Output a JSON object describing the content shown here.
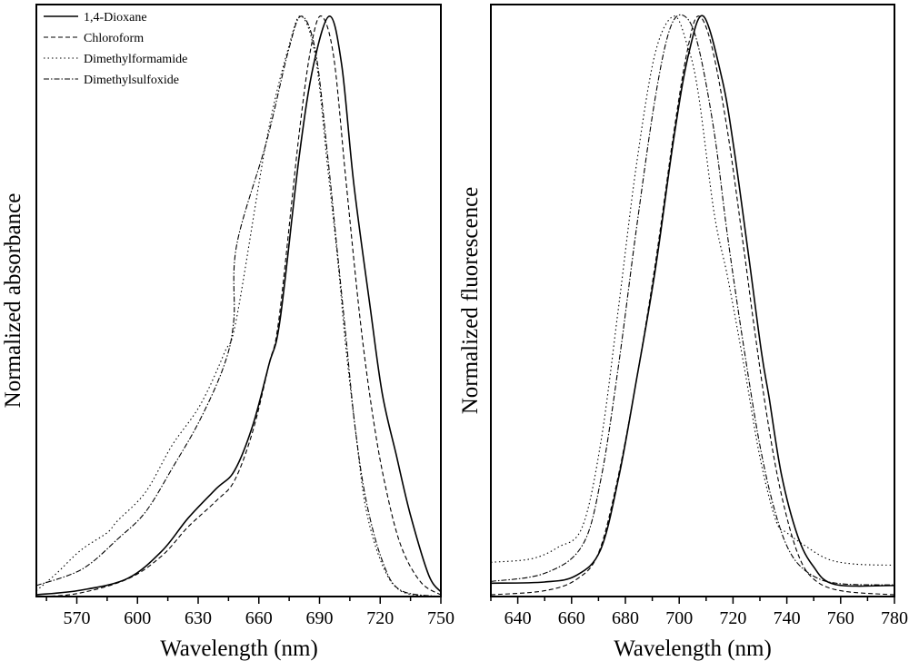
{
  "chart_data": [
    {
      "type": "line",
      "title": "",
      "xlabel": "Wavelength (nm)",
      "ylabel": "Normalized absorbance",
      "xlim": [
        550,
        750
      ],
      "ylim": [
        0,
        1.02
      ],
      "xticks": [
        570,
        600,
        630,
        660,
        690,
        720,
        750
      ],
      "grid": false,
      "legend": {
        "placement": "top-left",
        "entries": [
          "1,4-Dioxane",
          "Chloroform",
          "Dimethylformamide",
          "Dimethylsulfoxide"
        ]
      },
      "series": [
        {
          "name": "1,4-Dioxane",
          "style": "solid",
          "x": [
            550,
            572,
            595,
            612,
            625,
            639,
            648,
            657,
            665,
            670.5,
            680,
            687,
            695,
            701,
            707,
            715,
            721,
            728,
            735,
            744,
            750
          ],
          "y": [
            0.003,
            0.011,
            0.031,
            0.078,
            0.135,
            0.186,
            0.217,
            0.295,
            0.4,
            0.477,
            0.76,
            0.915,
            1.0,
            0.915,
            0.71,
            0.5,
            0.35,
            0.243,
            0.14,
            0.037,
            0.008
          ]
        },
        {
          "name": "Chloroform",
          "style": "dashed",
          "x": [
            550,
            570,
            595,
            612,
            625,
            639,
            648,
            657,
            665,
            670,
            680,
            686,
            691,
            697,
            703,
            710,
            716,
            722,
            730,
            740,
            750
          ],
          "y": [
            0.0,
            0.005,
            0.03,
            0.07,
            0.12,
            0.165,
            0.2,
            0.285,
            0.4,
            0.48,
            0.8,
            0.95,
            1.0,
            0.93,
            0.72,
            0.48,
            0.32,
            0.2,
            0.09,
            0.025,
            0.003
          ]
        },
        {
          "name": "Dimethylformamide",
          "style": "dotted",
          "x": [
            550,
            560,
            572,
            585,
            590,
            604,
            617,
            631,
            643,
            649,
            664,
            675,
            681,
            688,
            694,
            699,
            703,
            708,
            713,
            721,
            730,
            745
          ],
          "y": [
            0.01,
            0.04,
            0.08,
            0.11,
            0.13,
            0.18,
            0.26,
            0.33,
            0.42,
            0.48,
            0.79,
            0.95,
            1.0,
            0.93,
            0.74,
            0.58,
            0.43,
            0.28,
            0.15,
            0.055,
            0.01,
            0.0
          ]
        },
        {
          "name": "Dimethylsulfoxide",
          "style": "dash-dot",
          "x": [
            550,
            572.5,
            590.5,
            604,
            617.5,
            631,
            643,
            647.6,
            649,
            664,
            674.6,
            681,
            688,
            694,
            698.5,
            703,
            707.5,
            713,
            721,
            730,
            750
          ],
          "y": [
            0.019,
            0.047,
            0.1,
            0.146,
            0.223,
            0.305,
            0.4,
            0.476,
            0.605,
            0.786,
            0.94,
            1.0,
            0.94,
            0.76,
            0.605,
            0.45,
            0.295,
            0.166,
            0.062,
            0.011,
            0.0
          ]
        }
      ]
    },
    {
      "type": "line",
      "title": "",
      "xlabel": "Wavelength (nm)",
      "ylabel": "Normalized fluorescence",
      "xlim": [
        630,
        780
      ],
      "ylim": [
        0,
        1.02
      ],
      "xticks": [
        640,
        660,
        680,
        700,
        720,
        740,
        760,
        780
      ],
      "grid": false,
      "series": [
        {
          "name": "1,4-Dioxane",
          "style": "solid",
          "x": [
            630,
            650,
            661.6,
            670.7,
            677.5,
            684,
            691,
            698,
            703.5,
            709,
            716,
            720.4,
            726,
            730.6,
            733.4,
            738,
            744,
            749.7,
            757.8,
            780
          ],
          "y": [
            0.023,
            0.025,
            0.036,
            0.08,
            0.205,
            0.37,
            0.56,
            0.79,
            0.935,
            1.0,
            0.89,
            0.77,
            0.58,
            0.42,
            0.343,
            0.21,
            0.105,
            0.053,
            0.021,
            0.019
          ]
        },
        {
          "name": "Chloroform",
          "style": "dashed",
          "x": [
            630,
            650,
            662,
            670,
            677,
            684,
            691,
            698,
            703,
            707,
            712,
            718,
            724,
            728,
            733,
            738,
            744,
            750,
            760,
            780
          ],
          "y": [
            0.003,
            0.01,
            0.03,
            0.075,
            0.2,
            0.37,
            0.57,
            0.8,
            0.94,
            1.0,
            0.95,
            0.8,
            0.6,
            0.46,
            0.3,
            0.175,
            0.075,
            0.03,
            0.01,
            0.003
          ]
        },
        {
          "name": "Dimethylformamide",
          "style": "dotted",
          "x": [
            630,
            645,
            655,
            664,
            671,
            677.5,
            684,
            691,
            698,
            703,
            707,
            713,
            718,
            724,
            730,
            736,
            740,
            746,
            755,
            765,
            780
          ],
          "y": [
            0.059,
            0.065,
            0.085,
            0.12,
            0.27,
            0.5,
            0.74,
            0.935,
            1.0,
            0.95,
            0.87,
            0.66,
            0.55,
            0.4,
            0.24,
            0.13,
            0.11,
            0.09,
            0.065,
            0.056,
            0.054
          ]
        },
        {
          "name": "Dimethylsulfoxide",
          "style": "dash-dot",
          "x": [
            630,
            650,
            664,
            671,
            677.5,
            684,
            691,
            696.7,
            702,
            707,
            713,
            718,
            724,
            730,
            736,
            742,
            750,
            760,
            780
          ],
          "y": [
            0.026,
            0.04,
            0.088,
            0.205,
            0.4,
            0.63,
            0.857,
            0.98,
            1.0,
            0.95,
            0.8,
            0.62,
            0.43,
            0.26,
            0.14,
            0.07,
            0.035,
            0.022,
            0.02
          ]
        }
      ]
    }
  ]
}
